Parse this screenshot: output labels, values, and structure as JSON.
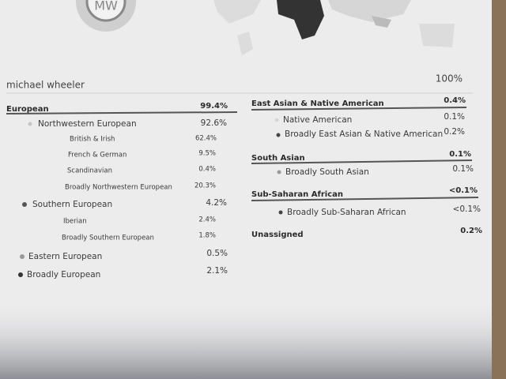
{
  "header": {
    "initials": "MW",
    "name": "michael wheeler",
    "total": "100%"
  },
  "left": [
    {
      "label": "European",
      "value": "99.4%",
      "items": [
        {
          "label": "Northwestern European",
          "value": "92.6%",
          "color": "#c4c4c4",
          "items": [
            {
              "label": "British & Irish",
              "value": "62.4%"
            },
            {
              "label": "French & German",
              "value": "9.5%"
            },
            {
              "label": "Scandinavian",
              "value": "0.4%"
            },
            {
              "label": "Broadly Northwestern European",
              "value": "20.3%"
            }
          ]
        },
        {
          "label": "Southern European",
          "value": "4.2%",
          "color": "#555555",
          "items": [
            {
              "label": "Iberian",
              "value": "2.4%"
            },
            {
              "label": "Broadly Southern European",
              "value": "1.8%"
            }
          ]
        },
        {
          "label": "Eastern European",
          "value": "0.5%",
          "color": "#999999"
        },
        {
          "label": "Broadly European",
          "value": "2.1%",
          "color": "#333333"
        }
      ]
    }
  ],
  "right": [
    {
      "label": "East Asian & Native American",
      "value": "0.4%",
      "items": [
        {
          "label": "Native American",
          "value": "0.1%",
          "color": "#d6d6d6"
        },
        {
          "label": "Broadly East Asian & Native American",
          "value": "0.2%",
          "color": "#444444"
        }
      ]
    },
    {
      "label": "South Asian",
      "value": "0.1%",
      "items": [
        {
          "label": "Broadly South Asian",
          "value": "0.1%",
          "color": "#999999"
        }
      ]
    },
    {
      "label": "Sub-Saharan African",
      "value": "<0.1%",
      "items": [
        {
          "label": "Broadly Sub-Saharan African",
          "value": "<0.1%",
          "color": "#444444"
        }
      ]
    },
    {
      "label": "Unassigned",
      "value": "0.2%"
    }
  ]
}
